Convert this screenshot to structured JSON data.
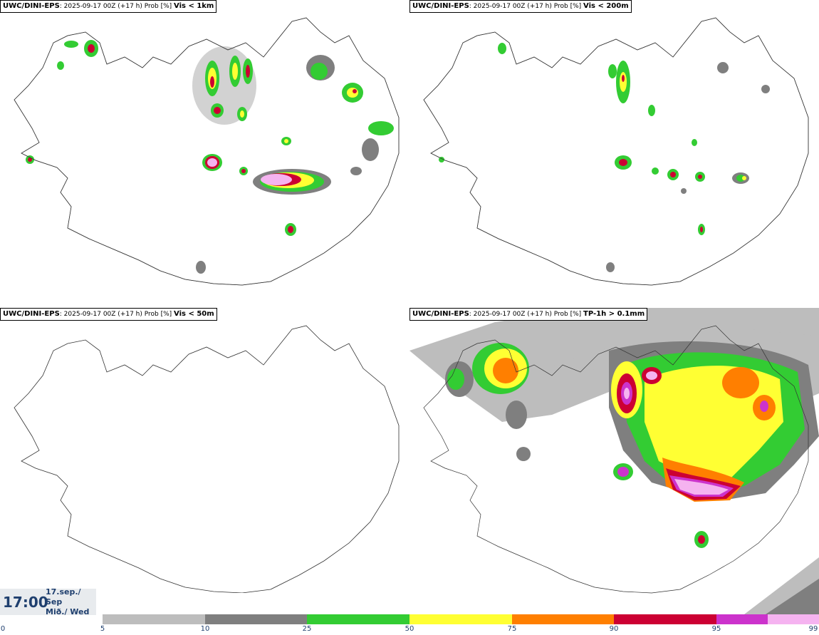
{
  "panels": [
    {
      "model": "UWC/DINI-EPS",
      "info": ": 2025-09-17 00Z (+17 h) Prob [%] ",
      "variable": "Vis < 1km"
    },
    {
      "model": "UWC/DINI-EPS",
      "info": ": 2025-09-17 00Z (+17 h) Prob [%] ",
      "variable": "Vis < 200m"
    },
    {
      "model": "UWC/DINI-EPS",
      "info": ": 2025-09-17 00Z (+17 h) Prob [%] ",
      "variable": "Vis < 50m"
    },
    {
      "model": "UWC/DINI-EPS",
      "info": ": 2025-09-17 00Z (+17 h) Prob [%] ",
      "variable": "TP-1h > 0.1mm"
    }
  ],
  "time": {
    "clock": "17:00",
    "date_line1": "17.sep./ Sep",
    "date_line2": "Mið./ Wed"
  },
  "legend": {
    "colors": [
      "#bdbdbd",
      "#7f7f7f",
      "#33cc33",
      "#ffff33",
      "#ff7f00",
      "#cc0033",
      "#cc33cc",
      "#f5b3f0"
    ],
    "ticks": [
      "0",
      "5",
      "10",
      "25",
      "50",
      "75",
      "90",
      "95",
      "99"
    ]
  }
}
